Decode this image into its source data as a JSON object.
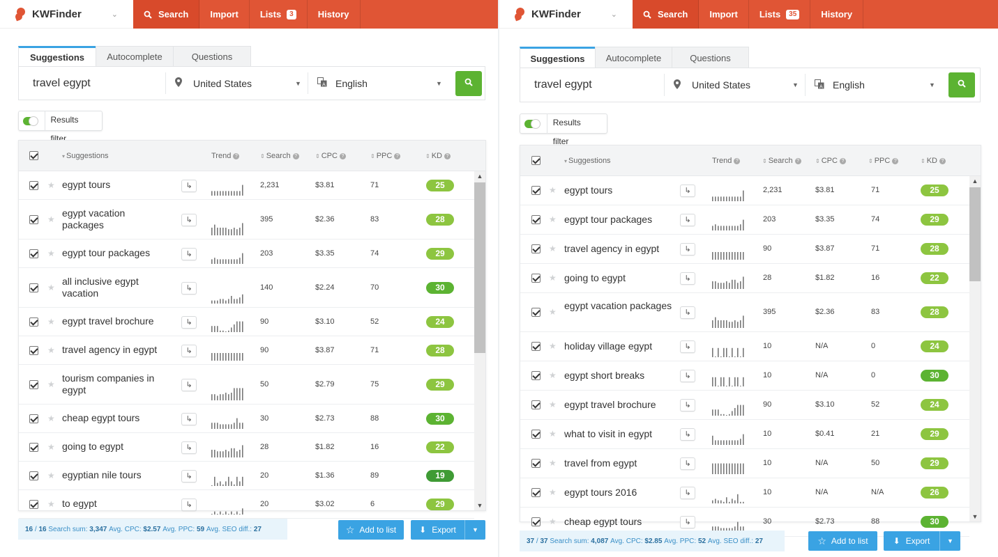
{
  "colors": {
    "brand": "#e05535",
    "accent": "#3aa3e3",
    "go": "#5cb332",
    "kd_light": "#8dc540",
    "kd_mid": "#5cb332",
    "kd_dark": "#3f9b35"
  },
  "panes": [
    {
      "brand": {
        "name": "KWFinder",
        "icon": "kwfinder-logo-icon"
      },
      "nav": [
        {
          "label": "Search",
          "icon": "search-icon"
        },
        {
          "label": "Import"
        },
        {
          "label": "Lists",
          "badge": "3"
        },
        {
          "label": "History"
        }
      ],
      "tabs": [
        "Suggestions",
        "Autocomplete",
        "Questions"
      ],
      "search": {
        "keyword": "travel egypt",
        "location": "United States",
        "language": "English"
      },
      "filter_label": "Results filter",
      "columns": {
        "suggestions": "Suggestions",
        "trend": "Trend",
        "search": "Search",
        "cpc": "CPC",
        "ppc": "PPC",
        "kd": "KD"
      },
      "rows": [
        {
          "kw": "egypt tours",
          "search": "2,231",
          "cpc": "$3.81",
          "ppc": "71",
          "kd": "25",
          "trend": [
            3,
            3,
            3,
            3,
            3,
            3,
            3,
            3,
            3,
            3,
            3,
            7
          ]
        },
        {
          "kw": "egypt vacation packages",
          "search": "395",
          "cpc": "$2.36",
          "ppc": "83",
          "kd": "28",
          "trend": [
            5,
            7,
            5,
            5,
            5,
            5,
            4,
            4,
            5,
            4,
            5,
            8
          ]
        },
        {
          "kw": "egypt tour packages",
          "search": "203",
          "cpc": "$3.35",
          "ppc": "74",
          "kd": "29",
          "trend": [
            3,
            4,
            3,
            3,
            3,
            3,
            3,
            3,
            3,
            3,
            4,
            7
          ]
        },
        {
          "kw": "all inclusive egypt vacation",
          "search": "140",
          "cpc": "$2.24",
          "ppc": "70",
          "kd": "30",
          "trend": [
            2,
            2,
            2,
            3,
            3,
            2,
            3,
            5,
            3,
            3,
            4,
            6
          ]
        },
        {
          "kw": "egypt travel brochure",
          "search": "90",
          "cpc": "$3.10",
          "ppc": "52",
          "kd": "24",
          "trend": [
            4,
            4,
            4,
            1,
            1,
            0,
            1,
            3,
            5,
            7,
            7,
            7
          ]
        },
        {
          "kw": "travel agency in egypt",
          "search": "90",
          "cpc": "$3.87",
          "ppc": "71",
          "kd": "28",
          "trend": [
            5,
            5,
            5,
            5,
            5,
            5,
            5,
            5,
            5,
            5,
            5,
            5
          ]
        },
        {
          "kw": "tourism companies in egypt",
          "search": "50",
          "cpc": "$2.79",
          "ppc": "75",
          "kd": "29",
          "trend": [
            4,
            4,
            3,
            4,
            4,
            5,
            4,
            5,
            8,
            8,
            8,
            8
          ]
        },
        {
          "kw": "cheap egypt tours",
          "search": "30",
          "cpc": "$2.73",
          "ppc": "88",
          "kd": "30",
          "trend": [
            4,
            4,
            4,
            3,
            3,
            3,
            3,
            3,
            4,
            7,
            4,
            4
          ]
        },
        {
          "kw": "going to egypt",
          "search": "28",
          "cpc": "$1.82",
          "ppc": "16",
          "kd": "22",
          "trend": [
            5,
            5,
            4,
            4,
            4,
            5,
            4,
            6,
            6,
            4,
            5,
            8
          ]
        },
        {
          "kw": "egyptian nile tours",
          "search": "20",
          "cpc": "$1.36",
          "ppc": "89",
          "kd": "19",
          "trend": [
            0,
            6,
            2,
            3,
            1,
            3,
            6,
            3,
            1,
            6,
            3,
            6
          ]
        },
        {
          "kw": "to egypt",
          "search": "20",
          "cpc": "$3.02",
          "ppc": "6",
          "kd": "29",
          "trend": [
            0,
            2,
            0,
            2,
            0,
            2,
            0,
            2,
            0,
            2,
            0,
            4
          ]
        }
      ],
      "summary": {
        "count": "16",
        "total": "16",
        "search_sum_label": "Search sum:",
        "search_sum": "3,347",
        "avg_cpc_label": "Avg. CPC:",
        "avg_cpc": "$2.57",
        "avg_ppc_label": "Avg. PPC:",
        "avg_ppc": "59",
        "avg_seo_label": "Avg. SEO diff.:",
        "avg_seo": "27"
      },
      "add_label": "Add to list",
      "export_label": "Export"
    },
    {
      "brand": {
        "name": "KWFinder",
        "icon": "kwfinder-logo-icon"
      },
      "nav": [
        {
          "label": "Search",
          "icon": "search-icon"
        },
        {
          "label": "Import"
        },
        {
          "label": "Lists",
          "badge": "35"
        },
        {
          "label": "History"
        }
      ],
      "tabs": [
        "Suggestions",
        "Autocomplete",
        "Questions"
      ],
      "search": {
        "keyword": "travel egypt",
        "location": "United States",
        "language": "English"
      },
      "filter_label": "Results filter",
      "columns": {
        "suggestions": "Suggestions",
        "trend": "Trend",
        "search": "Search",
        "cpc": "CPC",
        "ppc": "PPC",
        "kd": "KD"
      },
      "rows": [
        {
          "kw": "egypt tours",
          "search": "2,231",
          "cpc": "$3.81",
          "ppc": "71",
          "kd": "25",
          "trend": [
            3,
            3,
            3,
            3,
            3,
            3,
            3,
            3,
            3,
            3,
            3,
            7
          ]
        },
        {
          "kw": "egypt tour packages",
          "search": "203",
          "cpc": "$3.35",
          "ppc": "74",
          "kd": "29",
          "trend": [
            3,
            4,
            3,
            3,
            3,
            3,
            3,
            3,
            3,
            3,
            4,
            7
          ]
        },
        {
          "kw": "travel agency in egypt",
          "search": "90",
          "cpc": "$3.87",
          "ppc": "71",
          "kd": "28",
          "trend": [
            5,
            5,
            5,
            5,
            5,
            5,
            5,
            5,
            5,
            5,
            5,
            5
          ]
        },
        {
          "kw": "going to egypt",
          "search": "28",
          "cpc": "$1.82",
          "ppc": "16",
          "kd": "22",
          "trend": [
            5,
            5,
            4,
            4,
            4,
            5,
            4,
            6,
            6,
            4,
            5,
            8
          ]
        },
        {
          "kw": "egypt vacation packages",
          "search": "395",
          "cpc": "$2.36",
          "ppc": "83",
          "kd": "28",
          "trend": [
            5,
            7,
            5,
            5,
            5,
            5,
            4,
            4,
            5,
            4,
            5,
            8
          ]
        },
        {
          "kw": "holiday village egypt",
          "search": "10",
          "cpc": "N/A",
          "ppc": "0",
          "kd": "24",
          "trend": [
            6,
            0,
            6,
            0,
            6,
            6,
            0,
            6,
            0,
            6,
            0,
            6
          ]
        },
        {
          "kw": "egypt short breaks",
          "search": "10",
          "cpc": "N/A",
          "ppc": "0",
          "kd": "30",
          "trend": [
            6,
            6,
            0,
            6,
            6,
            0,
            6,
            0,
            6,
            6,
            0,
            6
          ]
        },
        {
          "kw": "egypt travel brochure",
          "search": "90",
          "cpc": "$3.10",
          "ppc": "52",
          "kd": "24",
          "trend": [
            4,
            4,
            4,
            1,
            1,
            0,
            1,
            3,
            5,
            7,
            7,
            7
          ]
        },
        {
          "kw": "what to visit in egypt",
          "search": "10",
          "cpc": "$0.41",
          "ppc": "21",
          "kd": "29",
          "trend": [
            6,
            3,
            3,
            3,
            3,
            3,
            3,
            3,
            3,
            3,
            4,
            7
          ]
        },
        {
          "kw": "travel from egypt",
          "search": "10",
          "cpc": "N/A",
          "ppc": "50",
          "kd": "29",
          "trend": [
            7,
            7,
            7,
            7,
            7,
            7,
            7,
            7,
            7,
            7,
            7,
            7
          ]
        },
        {
          "kw": "egypt tours 2016",
          "search": "10",
          "cpc": "N/A",
          "ppc": "N/A",
          "kd": "26",
          "trend": [
            2,
            3,
            2,
            2,
            1,
            4,
            1,
            3,
            2,
            6,
            1,
            1
          ]
        },
        {
          "kw": "cheap egypt tours",
          "search": "30",
          "cpc": "$2.73",
          "ppc": "88",
          "kd": "30",
          "trend": [
            4,
            4,
            4,
            3,
            3,
            3,
            3,
            3,
            4,
            7,
            4,
            4
          ]
        }
      ],
      "summary": {
        "count": "37",
        "total": "37",
        "search_sum_label": "Search sum:",
        "search_sum": "4,087",
        "avg_cpc_label": "Avg. CPC:",
        "avg_cpc": "$2.85",
        "avg_ppc_label": "Avg. PPC:",
        "avg_ppc": "52",
        "avg_seo_label": "Avg. SEO diff.:",
        "avg_seo": "27"
      },
      "add_label": "Add to list",
      "export_label": "Export"
    }
  ]
}
